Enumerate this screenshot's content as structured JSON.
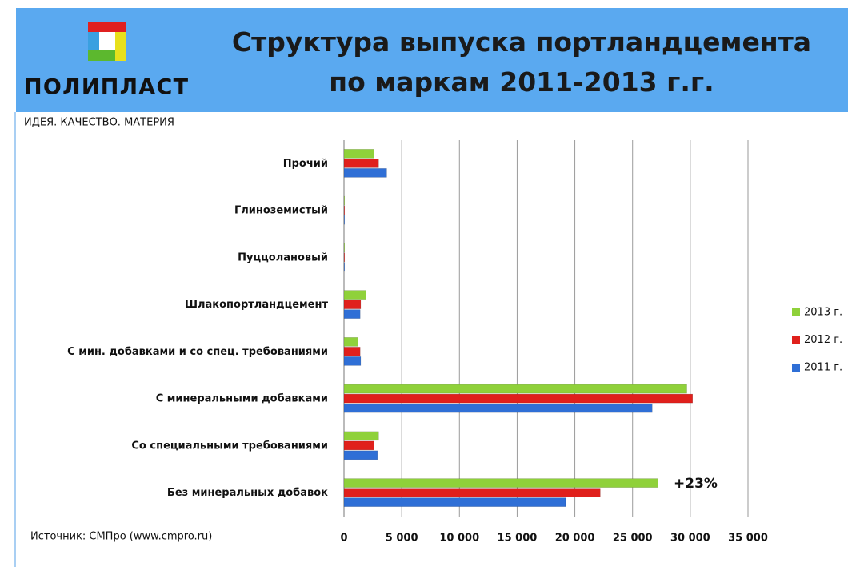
{
  "header": {
    "logo": "ПОЛИПЛАСТ",
    "tagline": "ИДЕЯ. КАЧЕСТВО. МАТЕРИЯ"
  },
  "chart_data": {
    "type": "hbar",
    "title": "Структура выпуска портландцемента по маркам 2011-2013 г.г.",
    "categories": [
      "Прочий",
      "Глиноземистый",
      "Пуццолановый",
      "Шлакопортландцемент",
      "С мин. добавками и со спец. требованиями",
      "С минеральными добавками",
      "Со специальными требованиями",
      "Без минеральных добавок"
    ],
    "series": [
      {
        "name": "2013 г.",
        "color": "#8fd13a",
        "values": [
          2600,
          50,
          50,
          1900,
          1200,
          29700,
          3000,
          27200
        ]
      },
      {
        "name": "2012 г.",
        "color": "#e0201c",
        "values": [
          3000,
          50,
          50,
          1450,
          1400,
          30200,
          2600,
          22200
        ]
      },
      {
        "name": "2011 г.",
        "color": "#2f6fd6",
        "values": [
          3700,
          50,
          50,
          1400,
          1450,
          26700,
          2900,
          19200
        ]
      }
    ],
    "xlim": [
      0,
      35000
    ],
    "xticks": [
      0,
      {
        "value": 5000,
        "label": "5 000"
      },
      {
        "value": 10000,
        "label": "10 000"
      },
      {
        "value": 15000,
        "label": "15 000"
      },
      {
        "value": 20000,
        "label": "20 000"
      },
      {
        "value": 25000,
        "label": "25 000"
      },
      {
        "value": 30000,
        "label": "30 000"
      },
      {
        "value": 35000,
        "label": "35 000"
      }
    ],
    "grid": true,
    "legend": "right",
    "annotation": "+23%",
    "source": "Источник: СМПро (www.cmpro.ru)"
  }
}
